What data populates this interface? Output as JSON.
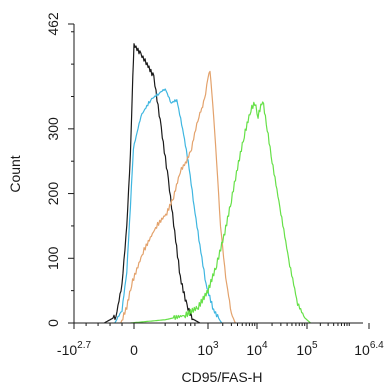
{
  "chart_data": {
    "type": "line",
    "chart_kind": "flow cytometry histogram",
    "xlabel": "CD95/FAS-H",
    "ylabel": "Count",
    "x_scale": "biexponential (log decades)",
    "xlim": [
      -501,
      2511886
    ],
    "ylim": [
      0,
      462
    ],
    "x_ticks": [
      {
        "value": -501,
        "base": "-10",
        "exp": "2.7"
      },
      {
        "value": 0,
        "base": "0",
        "exp": ""
      },
      {
        "value": 1000,
        "base": "10",
        "exp": "3"
      },
      {
        "value": 10000,
        "base": "10",
        "exp": "4"
      },
      {
        "value": 100000,
        "base": "10",
        "exp": "5"
      },
      {
        "value": 2511886,
        "base": "10",
        "exp": "6.4"
      }
    ],
    "y_ticks": [
      0,
      100,
      200,
      300,
      462
    ],
    "grid": false,
    "series": [
      {
        "color": "#1a1a1a",
        "points": [
          [
            -250,
            0
          ],
          [
            -150,
            10
          ],
          [
            -100,
            60
          ],
          [
            -60,
            150
          ],
          [
            -30,
            260
          ],
          [
            -10,
            380
          ],
          [
            0,
            430
          ],
          [
            15,
            415
          ],
          [
            30,
            400
          ],
          [
            50,
            380
          ],
          [
            80,
            300
          ],
          [
            120,
            220
          ],
          [
            170,
            140
          ],
          [
            230,
            70
          ],
          [
            330,
            25
          ],
          [
            450,
            6
          ],
          [
            650,
            0
          ]
        ]
      },
      {
        "color": "#3fb6e0",
        "points": [
          [
            -160,
            0
          ],
          [
            -100,
            20
          ],
          [
            -60,
            80
          ],
          [
            -30,
            180
          ],
          [
            -5,
            270
          ],
          [
            15,
            320
          ],
          [
            40,
            345
          ],
          [
            70,
            355
          ],
          [
            100,
            362
          ],
          [
            140,
            340
          ],
          [
            190,
            345
          ],
          [
            260,
            300
          ],
          [
            350,
            250
          ],
          [
            480,
            180
          ],
          [
            650,
            120
          ],
          [
            900,
            60
          ],
          [
            1300,
            20
          ],
          [
            1900,
            0
          ]
        ]
      },
      {
        "color": "#e3a26c",
        "points": [
          [
            -110,
            0
          ],
          [
            -60,
            25
          ],
          [
            -20,
            60
          ],
          [
            20,
            110
          ],
          [
            60,
            150
          ],
          [
            110,
            170
          ],
          [
            160,
            195
          ],
          [
            230,
            235
          ],
          [
            320,
            250
          ],
          [
            420,
            270
          ],
          [
            520,
            300
          ],
          [
            620,
            320
          ],
          [
            750,
            335
          ],
          [
            880,
            355
          ],
          [
            1000,
            380
          ],
          [
            1100,
            390
          ],
          [
            1250,
            340
          ],
          [
            1500,
            250
          ],
          [
            1800,
            150
          ],
          [
            2300,
            70
          ],
          [
            3000,
            15
          ],
          [
            3600,
            0
          ]
        ]
      },
      {
        "color": "#66e048",
        "points": [
          [
            -30,
            0
          ],
          [
            100,
            5
          ],
          [
            300,
            12
          ],
          [
            600,
            25
          ],
          [
            1000,
            50
          ],
          [
            1500,
            90
          ],
          [
            2200,
            140
          ],
          [
            3000,
            190
          ],
          [
            4000,
            240
          ],
          [
            5500,
            290
          ],
          [
            7500,
            330
          ],
          [
            9000,
            340
          ],
          [
            10500,
            320
          ],
          [
            13000,
            345
          ],
          [
            16000,
            300
          ],
          [
            20000,
            250
          ],
          [
            30000,
            170
          ],
          [
            45000,
            90
          ],
          [
            65000,
            30
          ],
          [
            90000,
            8
          ],
          [
            120000,
            0
          ]
        ]
      }
    ]
  }
}
